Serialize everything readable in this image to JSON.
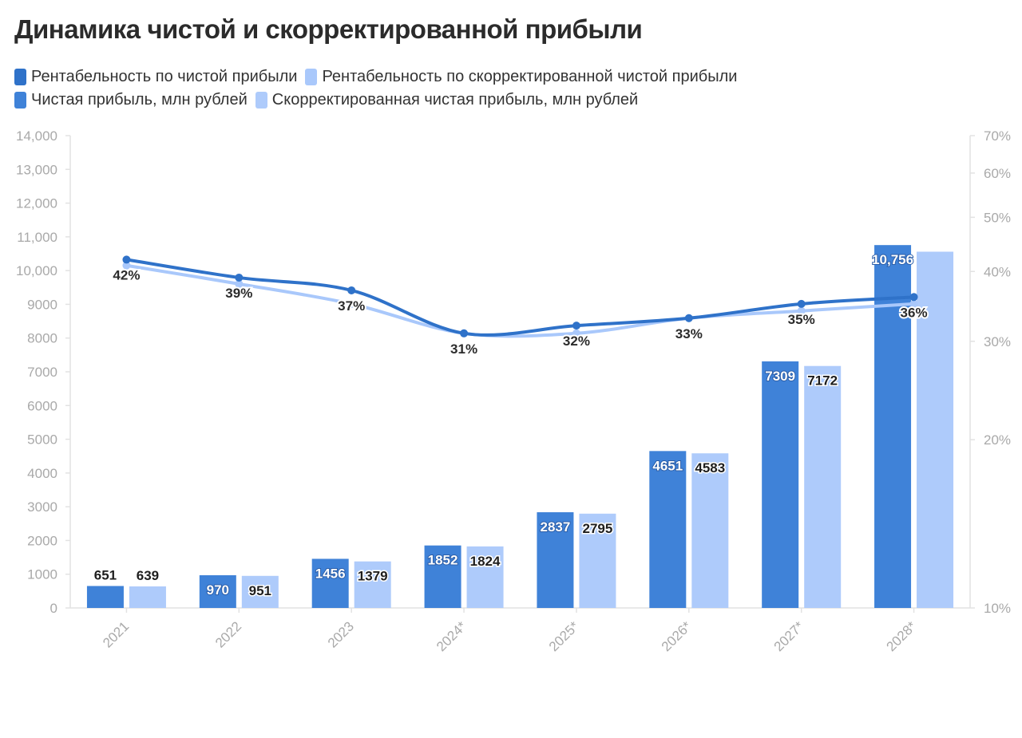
{
  "title": "Динамика чистой и скорректированной прибыли",
  "legend": [
    {
      "label": "Рентабельность по чистой прибыли",
      "color": "#2f72c9"
    },
    {
      "label": "Рентабельность по скорректированной чистой прибыли",
      "color": "#a9c8fb"
    },
    {
      "label": "Чистая прибыль, млн рублей",
      "color": "#3f82d8"
    },
    {
      "label": "Скорректированная чистая прибыль, млн рублей",
      "color": "#aecbfb"
    }
  ],
  "chart_data": {
    "type": "bar",
    "categories": [
      "2021",
      "2022",
      "2023",
      "2024*",
      "2025*",
      "2026*",
      "2027*",
      "2028*"
    ],
    "series": [
      {
        "name": "Чистая прибыль, млн рублей",
        "type": "bar",
        "axis": "left",
        "color": "#3f82d8",
        "values": [
          651,
          970,
          1456,
          1852,
          2837,
          4651,
          7309,
          10756
        ],
        "labels": [
          "651",
          "970",
          "1456",
          "1852",
          "2837",
          "4651",
          "7309",
          "10,756"
        ]
      },
      {
        "name": "Скорректированная чистая прибыль, млн рублей",
        "type": "bar",
        "axis": "left",
        "color": "#aecbfb",
        "values": [
          639,
          951,
          1379,
          1824,
          2795,
          4583,
          7172,
          10560
        ],
        "labels": [
          "639",
          "951",
          "1379",
          "1824",
          "2795",
          "4583",
          "7172",
          ""
        ]
      },
      {
        "name": "Рентабельность по чистой прибыли",
        "type": "line",
        "axis": "right",
        "color": "#2f72c9",
        "values": [
          42,
          39,
          37,
          31,
          32,
          33,
          35,
          36
        ],
        "labels": [
          "42%",
          "39%",
          "37%",
          "31%",
          "32%",
          "33%",
          "35%",
          "36%"
        ]
      },
      {
        "name": "Рентабельность по скорректированной чистой прибыли",
        "type": "line",
        "axis": "right",
        "color": "#a9c8fb",
        "values": [
          41,
          38,
          35,
          31,
          31,
          33,
          34,
          35
        ]
      }
    ],
    "y_left": {
      "range": [
        0,
        14000
      ],
      "ticks": [
        "0",
        "1000",
        "2000",
        "3000",
        "4000",
        "5000",
        "6000",
        "7000",
        "8000",
        "9000",
        "10,000",
        "11,000",
        "12,000",
        "13,000",
        "14,000"
      ]
    },
    "y_right": {
      "scale": "log",
      "range": [
        10,
        70
      ],
      "ticks": [
        "10%",
        "20%",
        "30%",
        "40%",
        "50%",
        "60%",
        "70%"
      ]
    },
    "grid": false
  }
}
